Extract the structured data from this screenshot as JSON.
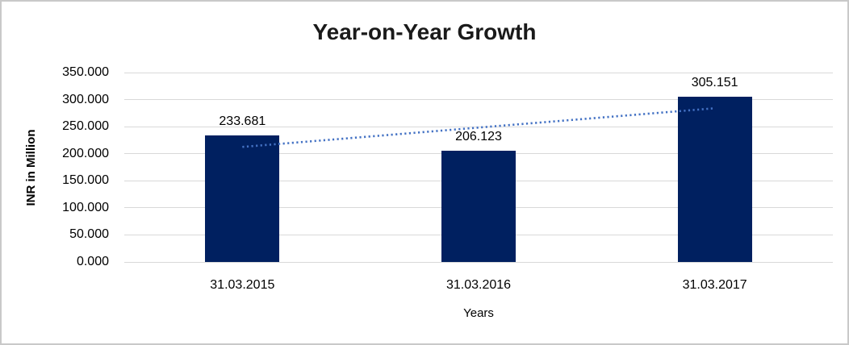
{
  "frame": {
    "background_color": "#ffffff",
    "border_color": "#c9c9c9"
  },
  "chart_data": {
    "type": "bar",
    "title": "Year-on-Year Growth",
    "xlabel": "Years",
    "ylabel": "INR in Million",
    "categories": [
      "31.03.2015",
      "31.03.2016",
      "31.03.2017"
    ],
    "series": [
      {
        "values": [
          233.681,
          206.123,
          305.151
        ],
        "value_labels": [
          "233.681",
          "206.123",
          "305.151"
        ],
        "bar_color": "#002060"
      }
    ],
    "y_axis": {
      "min": 0,
      "max": 350,
      "step": 50,
      "tick_labels": [
        "0.000",
        "50.000",
        "100.000",
        "150.000",
        "200.000",
        "250.000",
        "300.000",
        "350.000"
      ]
    },
    "trendline": {
      "kind": "linear",
      "line_style": "dotted",
      "color": "#4472c4"
    },
    "grid": "horizontal",
    "gridline_color": "#d9d9d9",
    "legend_position": "none"
  }
}
